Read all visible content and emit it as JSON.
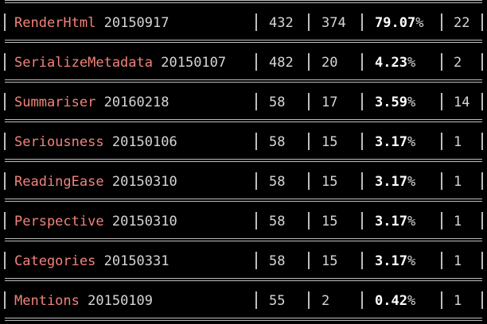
{
  "rows": [
    {
      "plugin": "RenderHtml",
      "version": "20150917",
      "count_a": "432",
      "count_b": "374",
      "percent_value": "79.07",
      "percent_sign": "%",
      "count_c": "22"
    },
    {
      "plugin": "SerializeMetadata",
      "version": "20150107",
      "count_a": "482",
      "count_b": "20",
      "percent_value": "4.23",
      "percent_sign": "%",
      "count_c": "2"
    },
    {
      "plugin": "Summariser",
      "version": "20160218",
      "count_a": "58",
      "count_b": "17",
      "percent_value": "3.59",
      "percent_sign": "%",
      "count_c": "14"
    },
    {
      "plugin": "Seriousness",
      "version": "20150106",
      "count_a": "58",
      "count_b": "15",
      "percent_value": "3.17",
      "percent_sign": "%",
      "count_c": "1"
    },
    {
      "plugin": "ReadingEase",
      "version": "20150310",
      "count_a": "58",
      "count_b": "15",
      "percent_value": "3.17",
      "percent_sign": "%",
      "count_c": "1"
    },
    {
      "plugin": "Perspective",
      "version": "20150310",
      "count_a": "58",
      "count_b": "15",
      "percent_value": "3.17",
      "percent_sign": "%",
      "count_c": "1"
    },
    {
      "plugin": "Categories",
      "version": "20150331",
      "count_a": "58",
      "count_b": "15",
      "percent_value": "3.17",
      "percent_sign": "%",
      "count_c": "1"
    },
    {
      "plugin": "Mentions",
      "version": "20150109",
      "count_a": "55",
      "count_b": "2",
      "percent_value": "0.42",
      "percent_sign": "%",
      "count_c": "1"
    }
  ],
  "colors": {
    "background": "#000000",
    "plugin_name": "#f2837a",
    "text": "#d6d6d6",
    "percent_highlight": "#ffffff",
    "border": "#bdbdbd"
  }
}
